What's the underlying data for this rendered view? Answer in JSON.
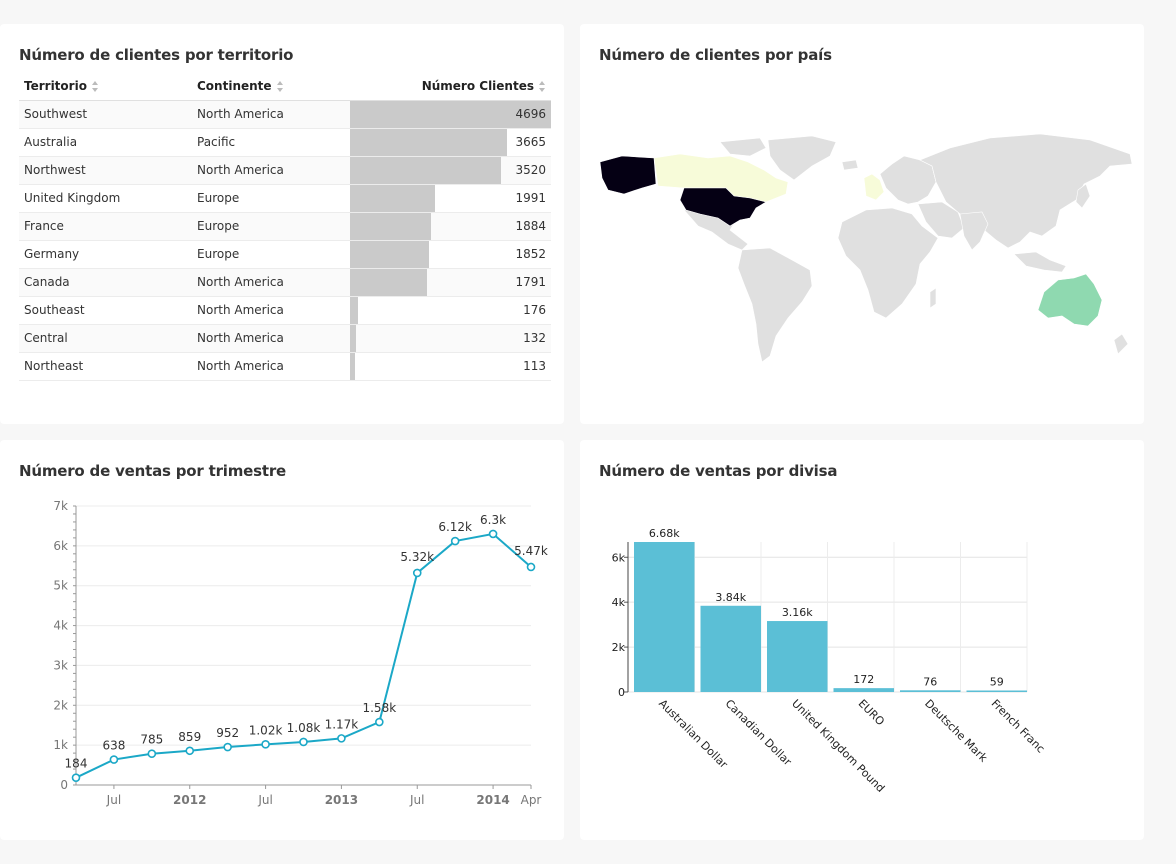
{
  "table_card": {
    "title": "Número de clientes por territorio",
    "headers": {
      "territory": "Territorio",
      "continent": "Continente",
      "customers": "Número Clientes"
    },
    "rows": [
      {
        "territory": "Southwest",
        "continent": "North America",
        "customers": 4696
      },
      {
        "territory": "Australia",
        "continent": "Pacific",
        "customers": 3665
      },
      {
        "territory": "Northwest",
        "continent": "North America",
        "customers": 3520
      },
      {
        "territory": "United Kingdom",
        "continent": "Europe",
        "customers": 1991
      },
      {
        "territory": "France",
        "continent": "Europe",
        "customers": 1884
      },
      {
        "territory": "Germany",
        "continent": "Europe",
        "customers": 1852
      },
      {
        "territory": "Canada",
        "continent": "North America",
        "customers": 1791
      },
      {
        "territory": "Southeast",
        "continent": "North America",
        "customers": 176
      },
      {
        "territory": "Central",
        "continent": "North America",
        "customers": 132
      },
      {
        "territory": "Northeast",
        "continent": "North America",
        "customers": 113
      }
    ]
  },
  "map_card": {
    "title": "Número de clientes por país",
    "colors": {
      "usa": "#050014",
      "canada": "#f7fbd9",
      "australia": "#8fd9b0",
      "europe_highlight": "#f7fbd9",
      "default": "#e0e0e0"
    }
  },
  "line_card": {
    "title": "Número de ventas por trimestre",
    "chart_data": {
      "type": "line",
      "y_ticks": [
        "0",
        "1k",
        "2k",
        "3k",
        "4k",
        "5k",
        "6k",
        "7k"
      ],
      "ylim": [
        0,
        7000
      ],
      "x_tick_labels": [
        {
          "label": "Jul",
          "bold": false,
          "at": 1
        },
        {
          "label": "2012",
          "bold": true,
          "at": 3
        },
        {
          "label": "Jul",
          "bold": false,
          "at": 5
        },
        {
          "label": "2013",
          "bold": true,
          "at": 7
        },
        {
          "label": "Jul",
          "bold": false,
          "at": 9
        },
        {
          "label": "2014",
          "bold": true,
          "at": 11
        },
        {
          "label": "Apr",
          "bold": false,
          "at": 12
        }
      ],
      "values": [
        184,
        638,
        785,
        859,
        952,
        1020,
        1080,
        1170,
        1580,
        5320,
        6120,
        6300,
        5470
      ],
      "labels": [
        "184",
        "638",
        "785",
        "859",
        "952",
        "1.02k",
        "1.08k",
        "1.17k",
        "1.58k",
        "5.32k",
        "6.12k",
        "6.3k",
        "5.47k"
      ],
      "color": "#1ba8c7"
    }
  },
  "bar_card": {
    "title": "Número de ventas por divisa",
    "chart_data": {
      "type": "bar",
      "categories": [
        "Australian Dollar",
        "Canadian Dollar",
        "United Kingdom Pound",
        "EURO",
        "Deutsche Mark",
        "French Franc"
      ],
      "values": [
        6680,
        3840,
        3160,
        172,
        76,
        59
      ],
      "labels": [
        "6.68k",
        "3.84k",
        "3.16k",
        "172",
        "76",
        "59"
      ],
      "y_ticks": [
        "0",
        "2k",
        "4k",
        "6k"
      ],
      "ylim": [
        0,
        6680
      ],
      "color": "#5bbfd6"
    }
  }
}
